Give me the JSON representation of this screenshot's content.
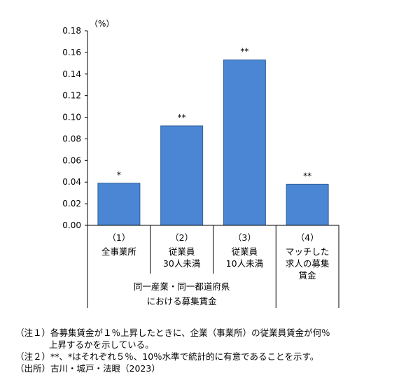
{
  "chart_data": {
    "type": "bar",
    "unit_label": "（%）",
    "ylim": [
      0,
      0.18
    ],
    "yticks": [
      "0.00",
      "0.02",
      "0.04",
      "0.06",
      "0.08",
      "0.10",
      "0.12",
      "0.14",
      "0.16",
      "0.18"
    ],
    "grid": false,
    "legend": "none",
    "bar_color": "#4a86d4",
    "categories": [
      {
        "num": "（1）",
        "label": [
          "全事業所"
        ]
      },
      {
        "num": "（2）",
        "label": [
          "従業員",
          "30人未満"
        ]
      },
      {
        "num": "（3）",
        "label": [
          "従業員",
          "10人未満"
        ]
      },
      {
        "num": "（4）",
        "label": [
          "マッチした",
          "求人の募集",
          "賃金"
        ]
      }
    ],
    "values": [
      0.039,
      0.092,
      0.153,
      0.038
    ],
    "significance": [
      "*",
      "**",
      "**",
      "**"
    ],
    "group_labels": [
      {
        "text": [
          "同一産業・同一都道府県",
          "における募集賃金"
        ]
      }
    ]
  },
  "notes": [
    {
      "prefix": "（注１）",
      "text": "各募集賃金が１％上昇したときに、企業（事業所）の従業員賃金が何％",
      "cont": "上昇するかを示している。"
    },
    {
      "prefix": "（注２）",
      "text": "**、*はそれぞれ５％、10％水準で統計的に有意であることを示す。"
    },
    {
      "prefix": "（出所）",
      "text": "古川・城戸・法眼（2023）"
    }
  ]
}
